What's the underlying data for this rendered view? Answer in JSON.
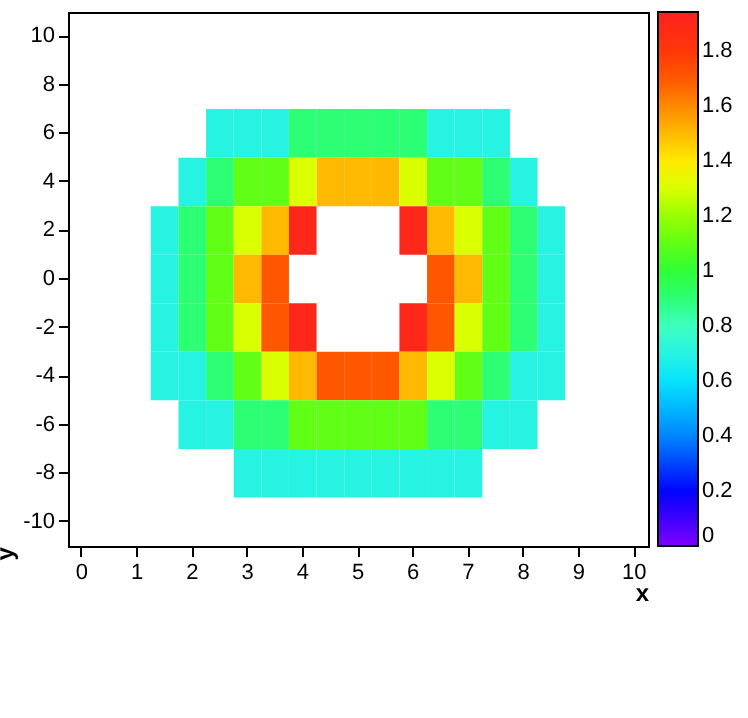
{
  "chart_data": {
    "type": "heatmap",
    "xlabel": "x",
    "ylabel": "y",
    "categories": [
      "0",
      null,
      "1",
      null,
      "2",
      null,
      "3",
      null,
      "4",
      null,
      "5",
      null,
      "6",
      null,
      "7",
      null,
      "8",
      null,
      "9",
      null,
      "10"
    ],
    "y_categories": [
      "10",
      "8",
      "6",
      "4",
      "2",
      "0",
      "-2",
      "-4",
      "-6",
      "-8",
      "-10"
    ],
    "clim": [
      0,
      1.94
    ],
    "cticks": [
      0,
      0.2,
      0.4,
      0.6,
      0.8,
      1,
      1.2,
      1.4,
      1.6,
      1.8
    ],
    "cells": [
      [
        null,
        null,
        null,
        null,
        null,
        null,
        null,
        null,
        null,
        null,
        null,
        null,
        null,
        null,
        null,
        null,
        null,
        null,
        null,
        null,
        null
      ],
      [
        null,
        null,
        null,
        null,
        null,
        null,
        null,
        null,
        null,
        null,
        null,
        null,
        null,
        null,
        null,
        null,
        null,
        null,
        null,
        null,
        null
      ],
      [
        null,
        null,
        null,
        null,
        null,
        0.7,
        0.7,
        0.7,
        0.9,
        0.9,
        0.9,
        0.9,
        0.9,
        0.7,
        0.7,
        0.7,
        null,
        null,
        null,
        null,
        null
      ],
      [
        null,
        null,
        null,
        null,
        0.7,
        0.9,
        1.1,
        1.1,
        1.3,
        1.5,
        1.5,
        1.5,
        1.3,
        1.1,
        1.1,
        0.9,
        0.7,
        null,
        null,
        null,
        null
      ],
      [
        null,
        null,
        null,
        0.7,
        0.9,
        1.1,
        1.3,
        1.5,
        1.9,
        null,
        null,
        null,
        1.9,
        1.5,
        1.3,
        1.1,
        0.9,
        0.7,
        null,
        null,
        null
      ],
      [
        null,
        null,
        null,
        0.7,
        0.9,
        1.1,
        1.5,
        1.7,
        null,
        null,
        null,
        null,
        null,
        1.7,
        1.5,
        1.1,
        0.9,
        0.7,
        null,
        null,
        null
      ],
      [
        null,
        null,
        null,
        0.7,
        0.9,
        1.1,
        1.3,
        1.7,
        1.9,
        null,
        null,
        null,
        1.9,
        1.7,
        1.3,
        1.1,
        0.9,
        0.7,
        null,
        null,
        null
      ],
      [
        null,
        null,
        null,
        0.7,
        0.7,
        0.9,
        1.1,
        1.3,
        1.5,
        1.7,
        1.7,
        1.7,
        1.5,
        1.3,
        1.1,
        0.9,
        0.7,
        0.7,
        null,
        null,
        null
      ],
      [
        null,
        null,
        null,
        null,
        0.7,
        0.7,
        0.9,
        0.9,
        1.1,
        1.1,
        1.1,
        1.1,
        1.1,
        0.9,
        0.9,
        0.7,
        0.7,
        null,
        null,
        null,
        null
      ],
      [
        null,
        null,
        null,
        null,
        null,
        null,
        0.7,
        0.7,
        0.7,
        0.7,
        0.7,
        0.7,
        0.7,
        0.7,
        0.7,
        null,
        null,
        null,
        null,
        null,
        null
      ],
      [
        null,
        null,
        null,
        null,
        null,
        null,
        null,
        null,
        null,
        null,
        null,
        null,
        null,
        null,
        null,
        null,
        null,
        null,
        null,
        null,
        null
      ]
    ]
  }
}
